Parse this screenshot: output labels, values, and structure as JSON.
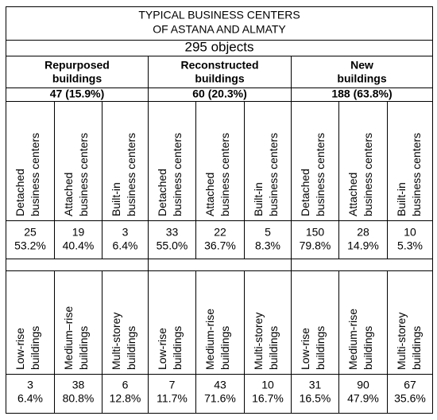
{
  "title_lines": [
    "TYPICAL BUSINESS CENTERS",
    "OF ASTANA AND ALMATY"
  ],
  "total": "295 objects",
  "groups": [
    {
      "name_lines": [
        "Repurposed",
        "buildings"
      ],
      "summary": "47 (15.9%)",
      "by_type": [
        {
          "label_lines": [
            "Detached",
            "business centers"
          ],
          "count": 25,
          "share": "53.2%"
        },
        {
          "label_lines": [
            "Attached",
            "business centers"
          ],
          "count": 19,
          "share": "40.4%"
        },
        {
          "label_lines": [
            "Built-in",
            "business centers"
          ],
          "count": 3,
          "share": "6.4%"
        }
      ],
      "by_height": [
        {
          "label_lines": [
            "Low-rise",
            "buildings"
          ],
          "count": 3,
          "share": "6.4%"
        },
        {
          "label_lines": [
            "Medium–rise",
            "buildings"
          ],
          "count": 38,
          "share": "80.8%"
        },
        {
          "label_lines": [
            "Multi-storey",
            "buildings"
          ],
          "count": 6,
          "share": "12.8%"
        }
      ]
    },
    {
      "name_lines": [
        "Reconstructed",
        "buildings"
      ],
      "summary": "60 (20.3%)",
      "by_type": [
        {
          "label_lines": [
            "Detached",
            "business centers"
          ],
          "count": 33,
          "share": "55.0%"
        },
        {
          "label_lines": [
            "Attached",
            "business centers"
          ],
          "count": 22,
          "share": "36.7%"
        },
        {
          "label_lines": [
            "Built-in",
            "business centers"
          ],
          "count": 5,
          "share": "8.3%"
        }
      ],
      "by_height": [
        {
          "label_lines": [
            "Low-rise",
            "buildings"
          ],
          "count": 7,
          "share": "11.7%"
        },
        {
          "label_lines": [
            "Medium-rise",
            "buildings"
          ],
          "count": 43,
          "share": "71.6%"
        },
        {
          "label_lines": [
            "Multi-storey",
            "buildings"
          ],
          "count": 10,
          "share": "16.7%"
        }
      ]
    },
    {
      "name_lines": [
        "New",
        "buildings"
      ],
      "summary": "188 (63.8%)",
      "by_type": [
        {
          "label_lines": [
            "Detached",
            "business centers"
          ],
          "count": 150,
          "share": "79.8%"
        },
        {
          "label_lines": [
            "Attached",
            "business centers"
          ],
          "count": 28,
          "share": "14.9%"
        },
        {
          "label_lines": [
            "Built-in",
            "business centers"
          ],
          "count": 10,
          "share": "5.3%"
        }
      ],
      "by_height": [
        {
          "label_lines": [
            "Low-rise",
            "buildings"
          ],
          "count": 31,
          "share": "16.5%"
        },
        {
          "label_lines": [
            "Medium-rise",
            "buildings"
          ],
          "count": 90,
          "share": "47.9%"
        },
        {
          "label_lines": [
            "Multi-storey",
            "buildings"
          ],
          "count": 67,
          "share": "35.6%"
        }
      ]
    }
  ]
}
